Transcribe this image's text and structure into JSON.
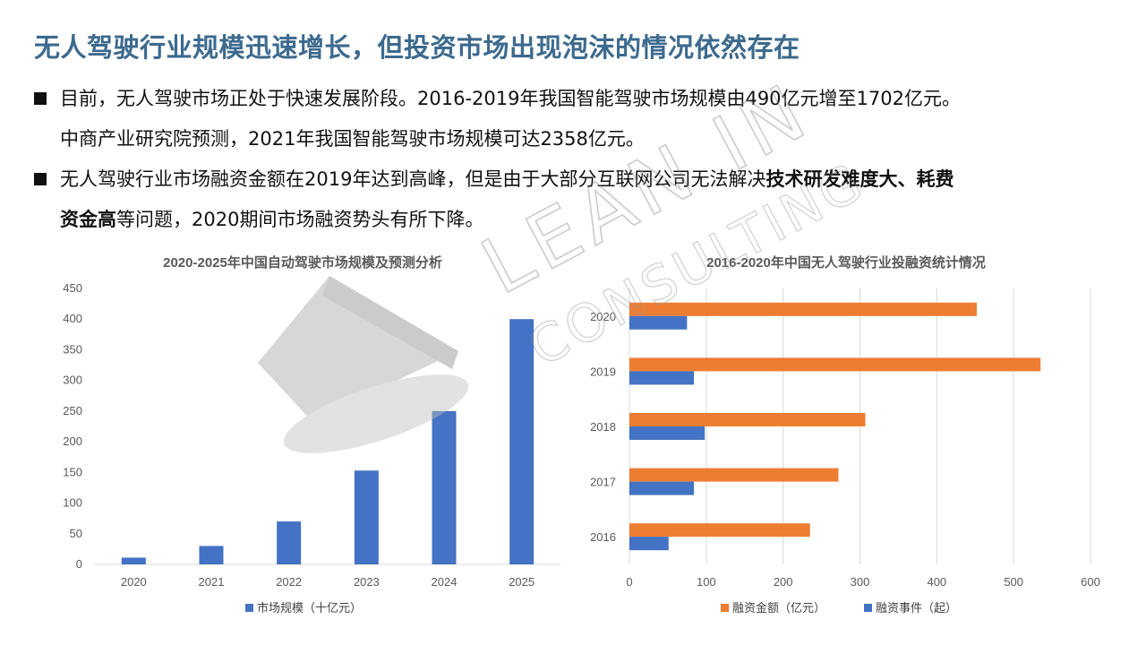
{
  "heading": "无人驾驶行业规模迅速增长，但投资市场出现泡沫的情况依然存在",
  "bullets": [
    {
      "line1": "目前，无人驾驶市场正处于快速发展阶段。2016-2019年我国智能驾驶市场规模由490亿元增至1702亿元。",
      "line2": "中商产业研究院预测，2021年我国智能驾驶市场规模可达2358亿元。"
    },
    {
      "line1_pre": "无人驾驶行业市场融资金额在2019年达到高峰，但是由于大部分互联网公司无法解决",
      "line1_bold": "技术研发难度大、耗费",
      "line2_bold": "资金高",
      "line2_post": "等问题，2020期间市场融资势头有所下降。"
    }
  ],
  "watermark": {
    "line1": "LEAN IN",
    "line2": "CONSULTING"
  },
  "colors": {
    "title": "#3d6a8e",
    "blue": "#4472c4",
    "orange": "#ed7d31",
    "axis": "#d9d9d9",
    "text": "#595959"
  },
  "chart_data": [
    {
      "type": "bar",
      "title": "2020-2025年中国自动驾驶市场规模及预测分析",
      "categories": [
        "2020",
        "2021",
        "2022",
        "2023",
        "2024",
        "2025"
      ],
      "series": [
        {
          "name": "市场规模（十亿元）",
          "values": [
            11,
            30,
            70,
            153,
            250,
            400
          ]
        }
      ],
      "yticks": [
        "0",
        "50",
        "100",
        "150",
        "200",
        "250",
        "300",
        "350",
        "400",
        "450"
      ],
      "ylim": [
        0,
        450
      ],
      "grid": false,
      "legend": "bottom"
    },
    {
      "type": "bar",
      "orientation": "horizontal",
      "title": "2016-2020年中国无人驾驶行业投融资统计情况",
      "categories": [
        "2020",
        "2019",
        "2018",
        "2017",
        "2016"
      ],
      "series": [
        {
          "name": "融资金额（亿元）",
          "values": [
            452,
            535,
            307,
            272,
            235
          ]
        },
        {
          "name": "融资事件（起）",
          "values": [
            75,
            84,
            98,
            84,
            51
          ]
        }
      ],
      "xticks": [
        "0",
        "100",
        "200",
        "300",
        "400",
        "500",
        "600"
      ],
      "xlim": [
        0,
        600
      ],
      "grid": true,
      "legend": "bottom"
    }
  ]
}
